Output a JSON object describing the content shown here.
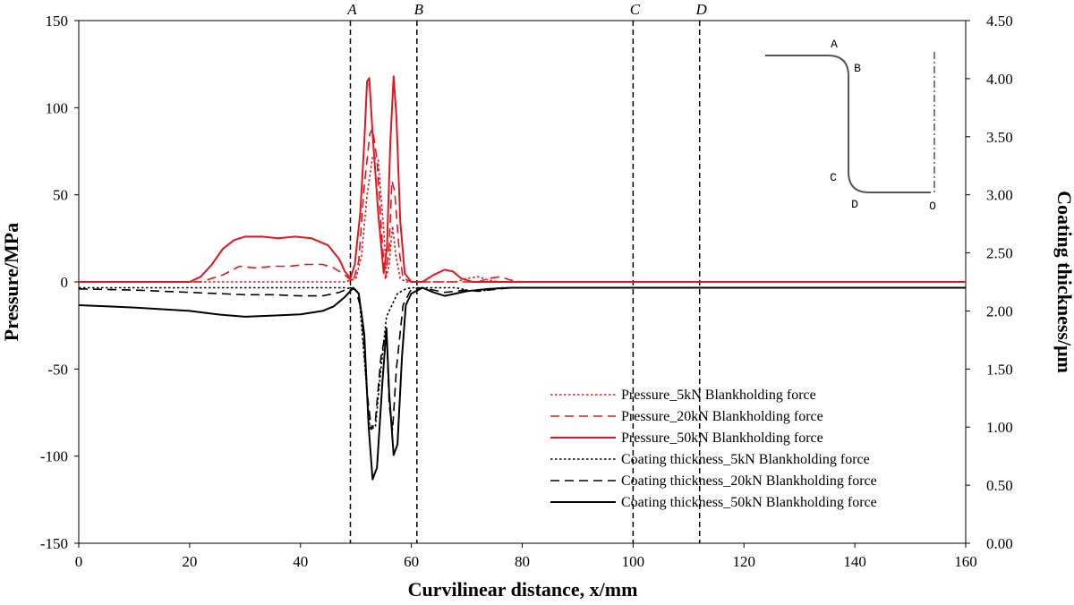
{
  "chart_data": {
    "type": "line",
    "xlabel": "Curvilinear distance, x/mm",
    "ylabel": "Pressure/MPa",
    "y2label": "Coating thickness/μm",
    "xlim": [
      0,
      160
    ],
    "ylim": [
      -150,
      150
    ],
    "y2lim": [
      0,
      4.5
    ],
    "x_ticks": [
      "0",
      "20",
      "40",
      "60",
      "80",
      "100",
      "120",
      "140",
      "160"
    ],
    "y_ticks": [
      "-150",
      "-100",
      "-50",
      "0",
      "50",
      "100",
      "150"
    ],
    "y2_ticks": [
      "0.00",
      "0.50",
      "1.00",
      "1.50",
      "2.00",
      "2.50",
      "3.00",
      "3.50",
      "4.00",
      "4.50"
    ],
    "grid": false,
    "legend_position": "lower-right",
    "markers": [
      {
        "label": "A",
        "x": 49
      },
      {
        "label": "B",
        "x": 61
      },
      {
        "label": "C",
        "x": 100
      },
      {
        "label": "D",
        "x": 112
      }
    ],
    "inset": {
      "description": "profile sketch",
      "labels": [
        "A",
        "B",
        "C",
        "D",
        "O"
      ]
    },
    "series": [
      {
        "name": "Pressure_5kN Blankholding force",
        "axis": "left",
        "color": "#e8141b",
        "style": "dotted",
        "points": [
          [
            0,
            0
          ],
          [
            48,
            0
          ],
          [
            50,
            2
          ],
          [
            51,
            15
          ],
          [
            52,
            50
          ],
          [
            53,
            72
          ],
          [
            54,
            70
          ],
          [
            55,
            30
          ],
          [
            55.5,
            3
          ],
          [
            56,
            10
          ],
          [
            56.6,
            32
          ],
          [
            57.2,
            15
          ],
          [
            58,
            2
          ],
          [
            59,
            0
          ],
          [
            68,
            0
          ],
          [
            70,
            2
          ],
          [
            72,
            3
          ],
          [
            74,
            1
          ],
          [
            76,
            0
          ],
          [
            160,
            0
          ]
        ]
      },
      {
        "name": "Pressure_20kN Blankholding force",
        "axis": "left",
        "color": "#e8141b",
        "style": "dashed",
        "points": [
          [
            0,
            0
          ],
          [
            22,
            0
          ],
          [
            26,
            4
          ],
          [
            29,
            9
          ],
          [
            32,
            8
          ],
          [
            35,
            9
          ],
          [
            38,
            9
          ],
          [
            41,
            10
          ],
          [
            44,
            10
          ],
          [
            46,
            8
          ],
          [
            48,
            4
          ],
          [
            49.5,
            0
          ],
          [
            50.5,
            12
          ],
          [
            51.5,
            55
          ],
          [
            52.5,
            85
          ],
          [
            53,
            88
          ],
          [
            53.8,
            70
          ],
          [
            54.8,
            20
          ],
          [
            55.3,
            2
          ],
          [
            56,
            20
          ],
          [
            56.5,
            58
          ],
          [
            57,
            52
          ],
          [
            57.8,
            18
          ],
          [
            58.5,
            2
          ],
          [
            60,
            0
          ],
          [
            72,
            0
          ],
          [
            74,
            2
          ],
          [
            76,
            3
          ],
          [
            78,
            1
          ],
          [
            80,
            0
          ],
          [
            160,
            0
          ]
        ]
      },
      {
        "name": "Pressure_50kN Blankholding force",
        "axis": "left",
        "color": "#e8141b",
        "style": "solid",
        "points": [
          [
            0,
            0
          ],
          [
            20,
            0
          ],
          [
            22,
            3
          ],
          [
            24,
            10
          ],
          [
            26,
            19
          ],
          [
            28,
            24
          ],
          [
            30,
            26
          ],
          [
            33,
            26
          ],
          [
            36,
            25
          ],
          [
            39,
            26
          ],
          [
            42,
            25
          ],
          [
            45,
            21
          ],
          [
            47,
            13
          ],
          [
            48,
            6
          ],
          [
            49,
            2
          ],
          [
            49.8,
            10
          ],
          [
            50.8,
            40
          ],
          [
            51.5,
            80
          ],
          [
            52,
            115
          ],
          [
            52.4,
            117
          ],
          [
            53,
            85
          ],
          [
            54,
            40
          ],
          [
            55,
            5
          ],
          [
            55.6,
            20
          ],
          [
            56.2,
            80
          ],
          [
            56.8,
            118
          ],
          [
            57.3,
            95
          ],
          [
            58,
            35
          ],
          [
            58.8,
            5
          ],
          [
            60,
            0
          ],
          [
            62,
            0
          ],
          [
            64,
            4
          ],
          [
            66,
            7
          ],
          [
            67.5,
            6
          ],
          [
            69,
            2
          ],
          [
            71,
            0
          ],
          [
            160,
            0
          ]
        ]
      },
      {
        "name": "Coating thickness_5kN Blankholding force",
        "axis": "right",
        "color": "#000000",
        "style": "dotted",
        "points": [
          [
            0,
            2.2
          ],
          [
            48,
            2.2
          ],
          [
            49.5,
            2.19
          ],
          [
            50.5,
            2.16
          ],
          [
            51.5,
            1.6
          ],
          [
            52.5,
            0.98
          ],
          [
            53.5,
            1.0
          ],
          [
            54.5,
            1.5
          ],
          [
            55.5,
            1.95
          ],
          [
            56.5,
            2.05
          ],
          [
            57.5,
            2.15
          ],
          [
            59,
            2.19
          ],
          [
            60,
            2.2
          ],
          [
            68,
            2.2
          ],
          [
            70,
            2.18
          ],
          [
            72,
            2.17
          ],
          [
            74,
            2.18
          ],
          [
            76,
            2.2
          ],
          [
            160,
            2.2
          ]
        ]
      },
      {
        "name": "Coating thickness_20kN Blankholding force",
        "axis": "right",
        "color": "#000000",
        "style": "dashed",
        "points": [
          [
            0,
            2.19
          ],
          [
            10,
            2.18
          ],
          [
            20,
            2.16
          ],
          [
            25,
            2.15
          ],
          [
            30,
            2.14
          ],
          [
            35,
            2.14
          ],
          [
            40,
            2.13
          ],
          [
            44,
            2.13
          ],
          [
            47,
            2.16
          ],
          [
            49,
            2.2
          ],
          [
            50,
            2.18
          ],
          [
            51,
            2.0
          ],
          [
            52,
            1.3
          ],
          [
            52.8,
            0.98
          ],
          [
            53.5,
            1.05
          ],
          [
            54.5,
            1.6
          ],
          [
            55.5,
            1.85
          ],
          [
            56,
            1.2
          ],
          [
            56.6,
            0.97
          ],
          [
            57.3,
            1.5
          ],
          [
            58.5,
            2.05
          ],
          [
            60,
            2.19
          ],
          [
            62,
            2.2
          ],
          [
            64,
            2.18
          ],
          [
            66,
            2.16
          ],
          [
            68,
            2.17
          ],
          [
            70,
            2.18
          ],
          [
            72,
            2.17
          ],
          [
            76,
            2.19
          ],
          [
            78,
            2.2
          ],
          [
            160,
            2.2
          ]
        ]
      },
      {
        "name": "Coating thickness_50kN Blankholding force",
        "axis": "right",
        "color": "#000000",
        "style": "solid",
        "points": [
          [
            0,
            2.05
          ],
          [
            10,
            2.03
          ],
          [
            20,
            2.0
          ],
          [
            25,
            1.97
          ],
          [
            30,
            1.95
          ],
          [
            35,
            1.96
          ],
          [
            40,
            1.97
          ],
          [
            44,
            2.0
          ],
          [
            46,
            2.04
          ],
          [
            48,
            2.12
          ],
          [
            49.5,
            2.2
          ],
          [
            50.5,
            2.15
          ],
          [
            51.5,
            1.8
          ],
          [
            52.3,
            1.0
          ],
          [
            53,
            0.55
          ],
          [
            53.8,
            0.65
          ],
          [
            54.8,
            1.4
          ],
          [
            55.5,
            1.85
          ],
          [
            56,
            1.3
          ],
          [
            56.8,
            0.76
          ],
          [
            57.5,
            0.85
          ],
          [
            58.3,
            1.6
          ],
          [
            59,
            2.05
          ],
          [
            60,
            2.15
          ],
          [
            62,
            2.2
          ],
          [
            64,
            2.16
          ],
          [
            66,
            2.13
          ],
          [
            68,
            2.15
          ],
          [
            70,
            2.17
          ],
          [
            74,
            2.19
          ],
          [
            78,
            2.2
          ],
          [
            160,
            2.2
          ]
        ]
      }
    ]
  }
}
